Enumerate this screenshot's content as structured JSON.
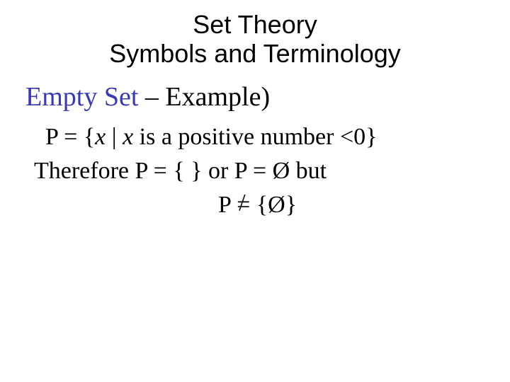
{
  "colors": {
    "background": "#ffffff",
    "title_color": "#000000",
    "subtitle_blue": "#3838b8",
    "body_color": "#000000"
  },
  "typography": {
    "title_font": "Arial",
    "title_fontsize": 36,
    "body_font": "Times New Roman",
    "subtitle_fontsize": 38,
    "body_fontsize": 34
  },
  "title": {
    "line1": "Set Theory",
    "line2": "Symbols and Terminology"
  },
  "subtitle": {
    "blue_part": "Empty Set",
    "black_part": " – Example)"
  },
  "body": {
    "line1_pre": "P = {",
    "line1_x1": "x",
    "line1_mid": " | ",
    "line1_x2": "x",
    "line1_post": " is a positive number <0}",
    "line2": "Therefore P = {  } or P = Ø but",
    "line3_pre": "P ",
    "line3_eq": "=",
    "line3_slash": "/",
    "line3_post": " {Ø}"
  }
}
